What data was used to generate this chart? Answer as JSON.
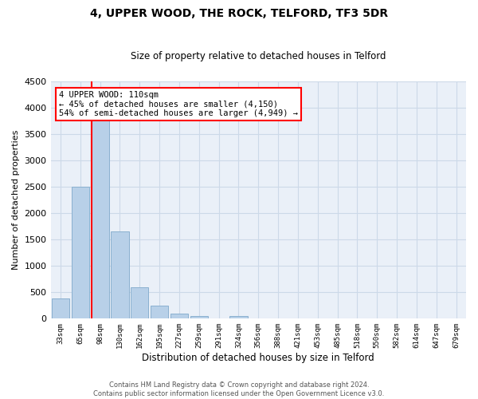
{
  "title": "4, UPPER WOOD, THE ROCK, TELFORD, TF3 5DR",
  "subtitle": "Size of property relative to detached houses in Telford",
  "xlabel": "Distribution of detached houses by size in Telford",
  "ylabel": "Number of detached properties",
  "bin_labels": [
    "33sqm",
    "65sqm",
    "98sqm",
    "130sqm",
    "162sqm",
    "195sqm",
    "227sqm",
    "259sqm",
    "291sqm",
    "324sqm",
    "356sqm",
    "388sqm",
    "421sqm",
    "453sqm",
    "485sqm",
    "518sqm",
    "550sqm",
    "582sqm",
    "614sqm",
    "647sqm",
    "679sqm"
  ],
  "bar_values": [
    380,
    2500,
    3750,
    1650,
    600,
    240,
    100,
    55,
    0,
    50,
    0,
    0,
    0,
    0,
    0,
    0,
    0,
    0,
    0,
    0,
    0
  ],
  "bar_color": "#b8d0e8",
  "bar_edgecolor": "#8ab0d0",
  "vline_color": "red",
  "vline_pos": 1.575,
  "annotation_title": "4 UPPER WOOD: 110sqm",
  "annotation_line1": "← 45% of detached houses are smaller (4,150)",
  "annotation_line2": "54% of semi-detached houses are larger (4,949) →",
  "ylim": [
    0,
    4500
  ],
  "yticks": [
    0,
    500,
    1000,
    1500,
    2000,
    2500,
    3000,
    3500,
    4000,
    4500
  ],
  "footer_line1": "Contains HM Land Registry data © Crown copyright and database right 2024.",
  "footer_line2": "Contains public sector information licensed under the Open Government Licence v3.0.",
  "grid_color": "#ccd9e8",
  "background_color": "#eaf0f8"
}
